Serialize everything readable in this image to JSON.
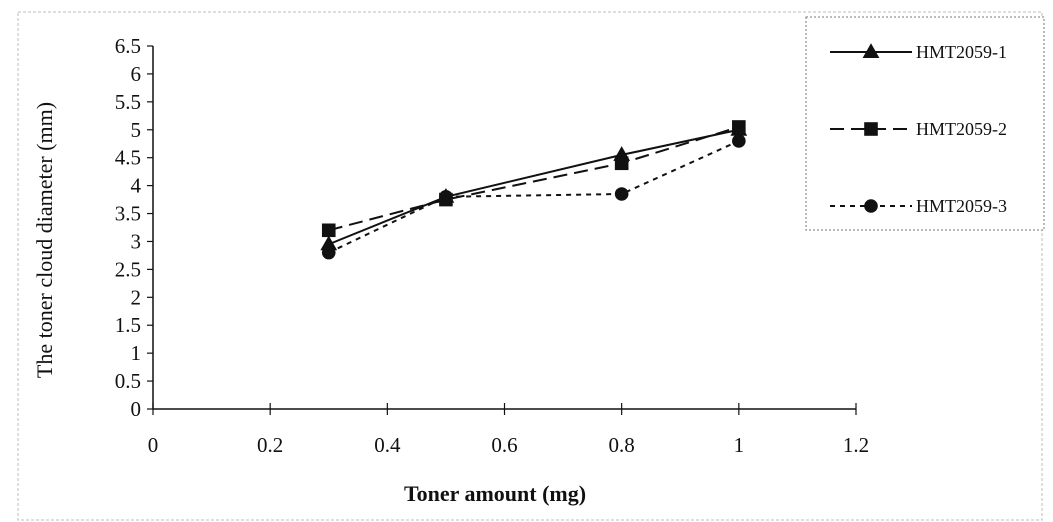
{
  "chart_data": {
    "type": "line",
    "title": "",
    "xlabel": "Toner amount (mg)",
    "ylabel": "The toner cloud diameter (mm)",
    "xlim": [
      0,
      1.2
    ],
    "ylim": [
      0,
      6.5
    ],
    "x_ticks": [
      "0",
      "0.2",
      "0.4",
      "0.6",
      "0.8",
      "1",
      "1.2"
    ],
    "y_ticks": [
      "0",
      "0.5",
      "1",
      "1.5",
      "2",
      "2.5",
      "3",
      "3.5",
      "4",
      "4.5",
      "5",
      "5.5",
      "6",
      "6.5"
    ],
    "grid": false,
    "legend_position": "top-right",
    "series": [
      {
        "name": "HMT2059-1",
        "marker": "triangle",
        "line": "solid",
        "x": [
          0.3,
          0.5,
          0.8,
          1.0
        ],
        "y": [
          2.95,
          3.8,
          4.55,
          5.0
        ]
      },
      {
        "name": "HMT2059-2",
        "marker": "square",
        "line": "dashed",
        "x": [
          0.3,
          0.5,
          0.8,
          1.0
        ],
        "y": [
          3.2,
          3.75,
          4.4,
          5.05
        ]
      },
      {
        "name": "HMT2059-3",
        "marker": "circle",
        "line": "dotted",
        "x": [
          0.3,
          0.5,
          0.8,
          1.0
        ],
        "y": [
          2.8,
          3.8,
          3.85,
          4.8
        ]
      }
    ]
  }
}
